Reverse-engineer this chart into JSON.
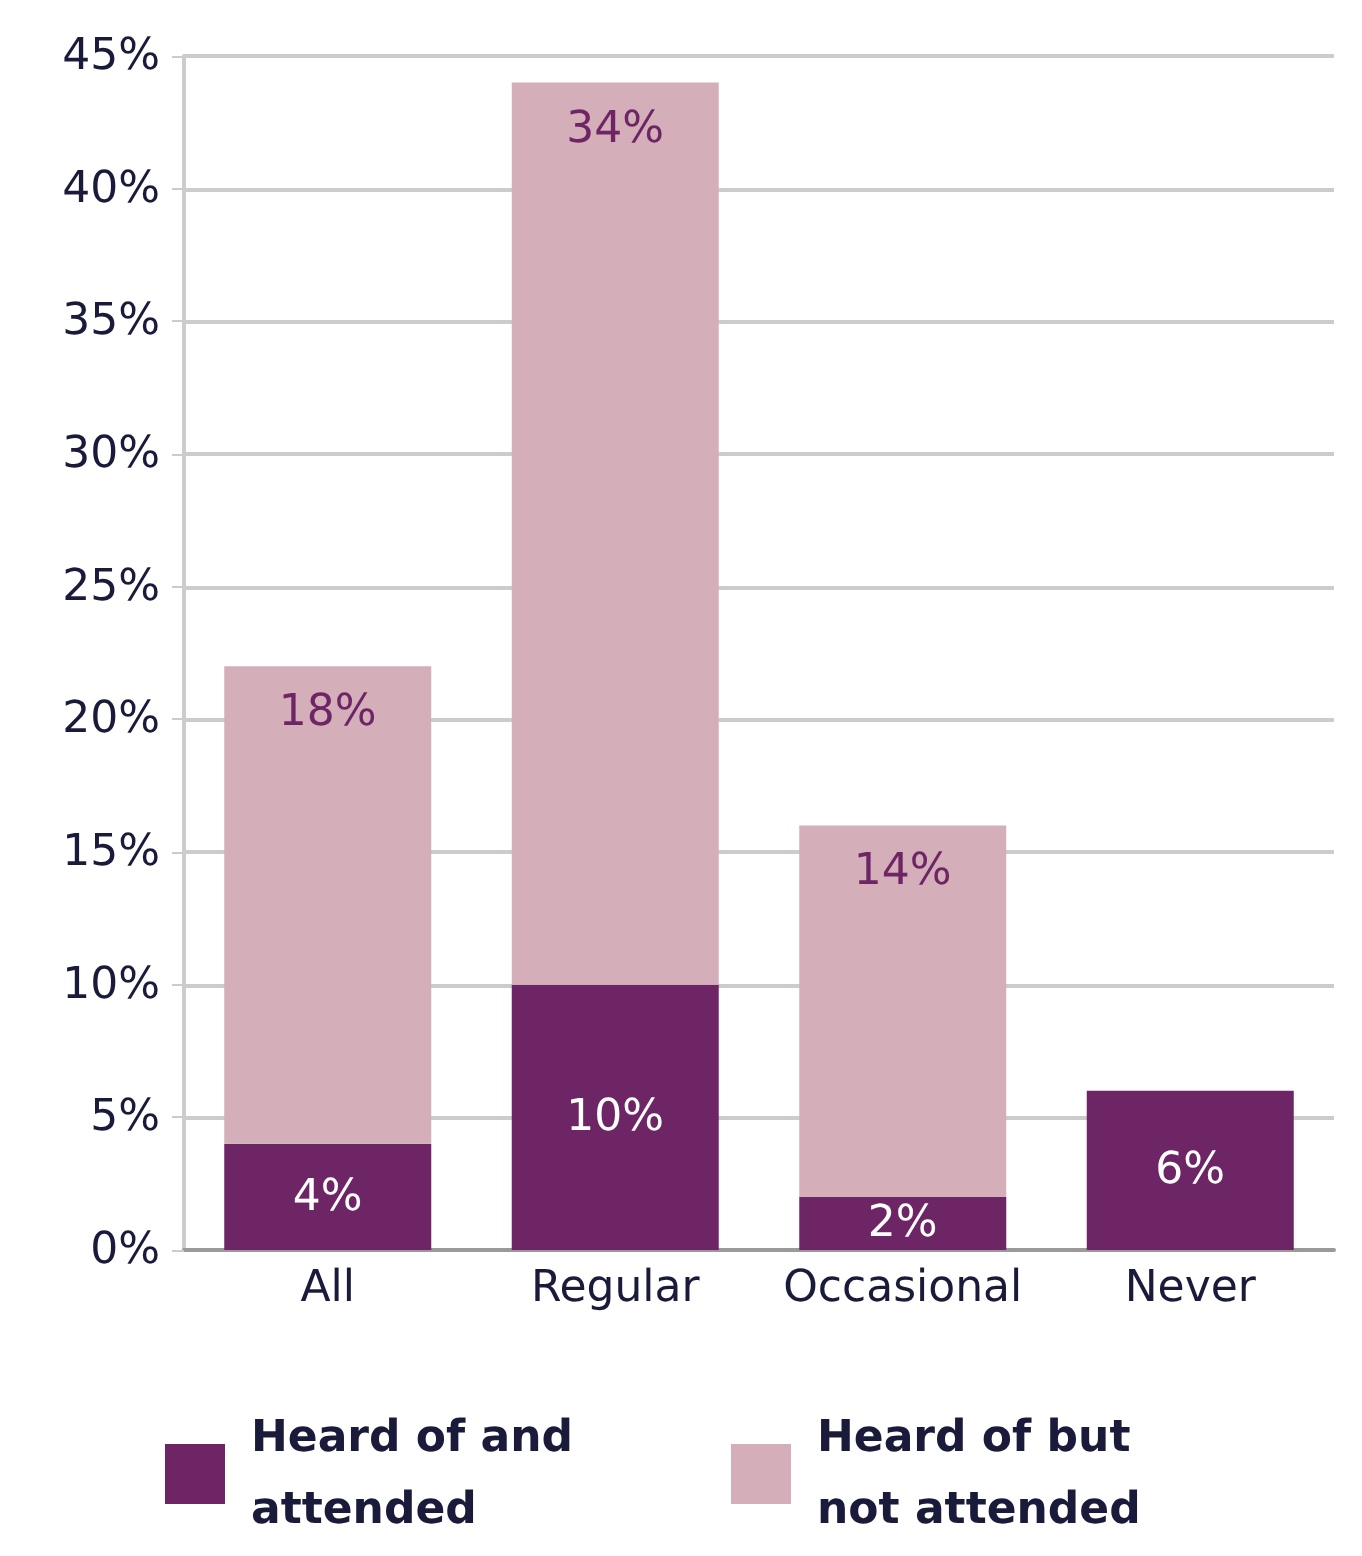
{
  "chart_data": {
    "type": "bar",
    "stacked": true,
    "categories": [
      "All",
      "Regular",
      "Occasional",
      "Never"
    ],
    "series": [
      {
        "name": "Heard of and attended",
        "color": "#6e2565",
        "values": [
          4,
          10,
          2,
          6
        ],
        "value_labels": [
          "4%",
          "10%",
          "2%",
          "6%"
        ]
      },
      {
        "name": "Heard of but not attended",
        "color": "#d4aeb9",
        "values": [
          18,
          34,
          14,
          null
        ],
        "value_labels": [
          "18%",
          "34%",
          "14%",
          null
        ]
      }
    ],
    "ylim": [
      0,
      45
    ],
    "yticks": [
      {
        "value": 0,
        "label": "0%"
      },
      {
        "value": 5,
        "label": "5%"
      },
      {
        "value": 10,
        "label": "10%"
      },
      {
        "value": 15,
        "label": "15%"
      },
      {
        "value": 20,
        "label": "20%"
      },
      {
        "value": 25,
        "label": "25%"
      },
      {
        "value": 30,
        "label": "30%"
      },
      {
        "value": 35,
        "label": "35%"
      },
      {
        "value": 40,
        "label": "40%"
      },
      {
        "value": 45,
        "label": "45%"
      }
    ],
    "grid": "y",
    "legend": "bottom"
  }
}
